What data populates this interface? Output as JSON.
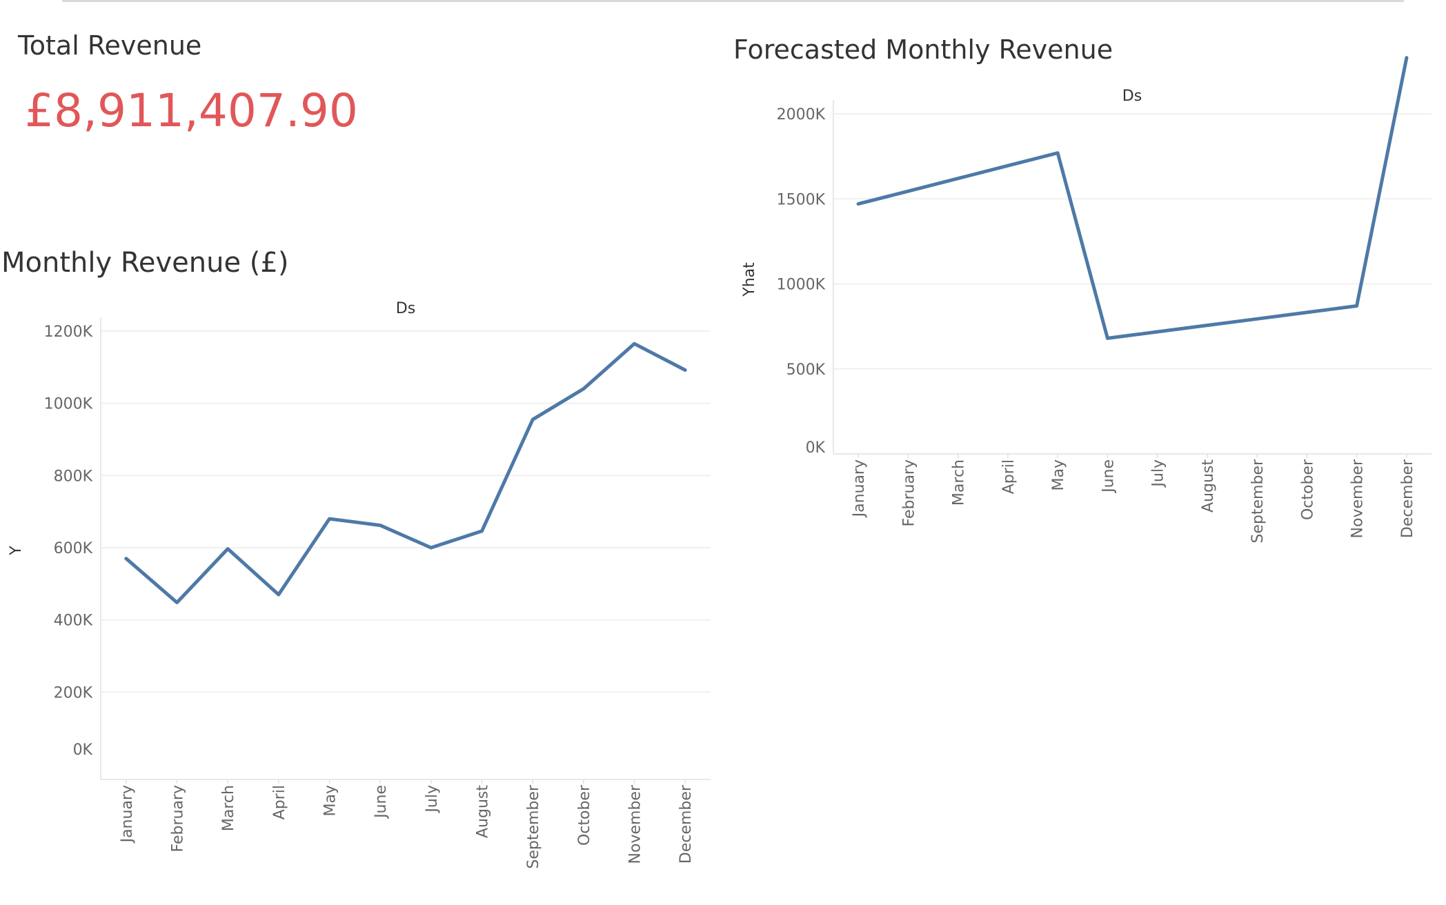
{
  "total_revenue": {
    "title": "Total Revenue",
    "value": "£8,911,407.90"
  },
  "monthly_revenue": {
    "title": "Monthly Revenue (£)"
  },
  "forecast_revenue": {
    "title": "Forecasted Monthly Revenue"
  },
  "colors": {
    "accent": "#e15759",
    "series": "#4e79a7",
    "text": "#333333"
  },
  "chart_data": [
    {
      "id": "monthly",
      "type": "line",
      "title": "Monthly Revenue (£)",
      "header": "Ds",
      "xlabel": "",
      "ylabel": "Y",
      "categories": [
        "January",
        "February",
        "March",
        "April",
        "May",
        "June",
        "July",
        "August",
        "September",
        "October",
        "November",
        "December"
      ],
      "series": [
        {
          "values": [
            570000,
            448000,
            597000,
            470000,
            680000,
            662000,
            600000,
            646000,
            955000,
            1040000,
            1165000,
            1092000
          ]
        }
      ],
      "ylim": [
        0,
        1200000
      ],
      "yticks": [
        0,
        200000,
        400000,
        600000,
        800000,
        1000000,
        1200000
      ],
      "ytick_labels": [
        "0K",
        "200K",
        "400K",
        "600K",
        "800K",
        "1000K",
        "1200K"
      ],
      "grid": true
    },
    {
      "id": "forecast",
      "type": "line",
      "title": "Forecasted Monthly Revenue",
      "header": "Ds",
      "xlabel": "",
      "ylabel": "Yhat",
      "categories": [
        "January",
        "February",
        "March",
        "April",
        "May",
        "June",
        "July",
        "August",
        "September",
        "October",
        "November",
        "December"
      ],
      "series": [
        {
          "values": [
            1470000,
            1545000,
            1620000,
            1695000,
            1770000,
            680000,
            718000,
            756000,
            794000,
            832000,
            870000,
            2330000
          ]
        }
      ],
      "ylim": [
        0,
        2000000
      ],
      "yticks": [
        0,
        500000,
        1000000,
        1500000,
        2000000
      ],
      "ytick_labels": [
        "0K",
        "500K",
        "1000K",
        "1500K",
        "2000K"
      ],
      "grid": true
    }
  ]
}
